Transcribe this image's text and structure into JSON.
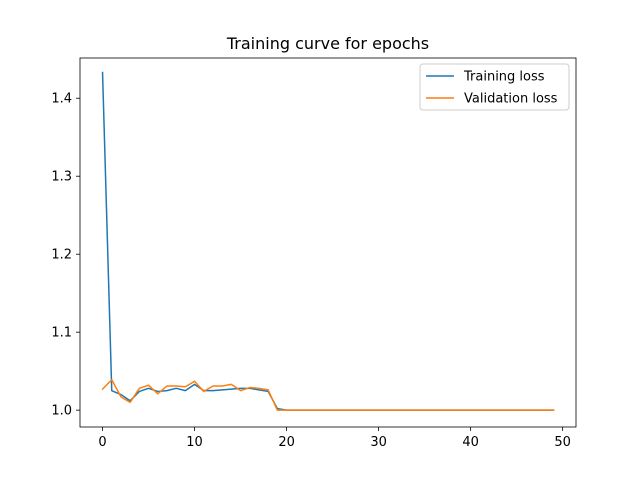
{
  "chart_data": {
    "type": "line",
    "title": "Training curve for epochs",
    "xlabel": "",
    "ylabel": "",
    "xlim": [
      -2.45,
      51.45
    ],
    "ylim": [
      0.9784,
      1.4516
    ],
    "xticks": [
      0,
      10,
      20,
      30,
      40,
      50
    ],
    "yticks": [
      1.0,
      1.1,
      1.2,
      1.3,
      1.4
    ],
    "ytick_labels": [
      "1.0",
      "1.1",
      "1.2",
      "1.3",
      "1.4"
    ],
    "grid": false,
    "legend": "top-right",
    "x": [
      0,
      1,
      2,
      3,
      4,
      5,
      6,
      7,
      8,
      9,
      10,
      11,
      12,
      13,
      14,
      15,
      16,
      17,
      18,
      19,
      20,
      21,
      22,
      23,
      24,
      25,
      26,
      27,
      28,
      29,
      30,
      31,
      32,
      33,
      34,
      35,
      36,
      37,
      38,
      39,
      40,
      41,
      42,
      43,
      44,
      45,
      46,
      47,
      48,
      49
    ],
    "series": [
      {
        "name": "Training loss",
        "color": "#1f77b4",
        "values": [
          1.433,
          1.025,
          1.02,
          1.012,
          1.024,
          1.028,
          1.024,
          1.025,
          1.028,
          1.025,
          1.033,
          1.025,
          1.025,
          1.026,
          1.027,
          1.028,
          1.028,
          1.026,
          1.024,
          1.002,
          1.0,
          1.0,
          1.0,
          1.0,
          1.0,
          1.0,
          1.0,
          1.0,
          1.0,
          1.0,
          1.0,
          1.0,
          1.0,
          1.0,
          1.0,
          1.0,
          1.0,
          1.0,
          1.0,
          1.0,
          1.0,
          1.0,
          1.0,
          1.0,
          1.0,
          1.0,
          1.0,
          1.0,
          1.0,
          1.0
        ]
      },
      {
        "name": "Validation loss",
        "color": "#ff7f0e",
        "values": [
          1.027,
          1.039,
          1.017,
          1.01,
          1.028,
          1.032,
          1.021,
          1.031,
          1.031,
          1.03,
          1.037,
          1.024,
          1.031,
          1.031,
          1.033,
          1.025,
          1.029,
          1.028,
          1.026,
          1.0,
          1.0,
          1.0,
          1.0,
          1.0,
          1.0,
          1.0,
          1.0,
          1.0,
          1.0,
          1.0,
          1.0,
          1.0,
          1.0,
          1.0,
          1.0,
          1.0,
          1.0,
          1.0,
          1.0,
          1.0,
          1.0,
          1.0,
          1.0,
          1.0,
          1.0,
          1.0,
          1.0,
          1.0,
          1.0,
          1.0
        ]
      }
    ]
  }
}
